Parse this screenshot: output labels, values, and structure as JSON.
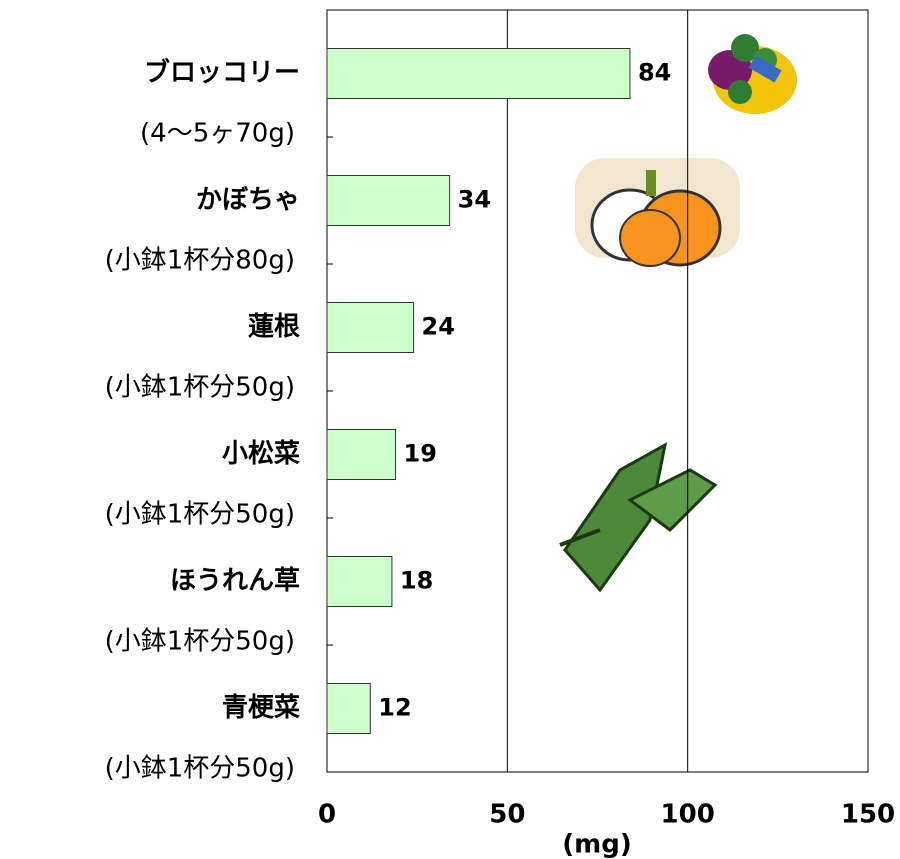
{
  "chart_data": {
    "type": "bar",
    "orientation": "horizontal",
    "categories": [
      "ブロッコリー",
      "かぼちゃ",
      "蓮根",
      "小松菜",
      "ほうれん草",
      "青梗菜"
    ],
    "category_notes": [
      "(4〜5ヶ70g)",
      "(小鉢1杯分80g)",
      "(小鉢1杯分50g)",
      "(小鉢1杯分50g)",
      "(小鉢1杯分50g)",
      "(小鉢1杯分50g)"
    ],
    "values": [
      84,
      34,
      24,
      19,
      18,
      12
    ],
    "color": "#ccffcc",
    "xlim": [
      0,
      150
    ],
    "xticks": [
      0,
      50,
      100,
      150
    ],
    "x_label": "(mg)",
    "grid": true
  }
}
